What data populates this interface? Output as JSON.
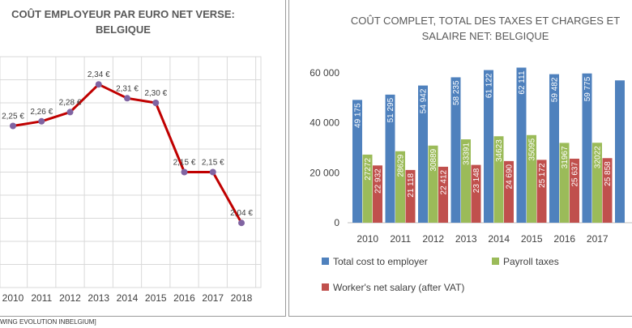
{
  "caption": "WING EVOLUTION INBELGIUM]",
  "colors": {
    "line": "#c00000",
    "marker": "#8064a2",
    "total": "#4f81bd",
    "taxes": "#9bbb59",
    "net": "#c0504d",
    "grid": "#d9d9d9"
  },
  "chart_data": [
    {
      "type": "line",
      "title_lines": [
        "COÛT EMPLOYEUR PAR EURO NET VERSE:",
        "BELGIQUE"
      ],
      "categories": [
        "2010",
        "2011",
        "2012",
        "2013",
        "2014",
        "2015",
        "2016",
        "2017",
        "2018"
      ],
      "values": [
        2.25,
        2.26,
        2.28,
        2.34,
        2.31,
        2.3,
        2.15,
        2.15,
        2.04
      ],
      "data_labels": [
        "2,25 €",
        "2,26 €",
        "2,28 €",
        "2,34 €",
        "2,31 €",
        "2,30 €",
        "2,15 €",
        "2,15 €",
        "2,04 €"
      ],
      "ylim": [
        1.9,
        2.4
      ],
      "grid": true
    },
    {
      "type": "bar",
      "title_lines": [
        "COÛT COMPLET, TOTAL DES TAXES ET CHARGES ET",
        "SALAIRE NET: BELGIQUE"
      ],
      "categories": [
        "2010",
        "2011",
        "2012",
        "2013",
        "2014",
        "2015",
        "2016",
        "2017"
      ],
      "ylim": [
        0,
        70000
      ],
      "yticks": [
        0,
        20000,
        40000,
        60000
      ],
      "ytick_labels": [
        "0",
        "20 000",
        "40 000",
        "60 000"
      ],
      "grid": false,
      "legend_position": "bottom",
      "series": [
        {
          "name": "Total cost to employer",
          "values": [
            49175,
            51295,
            54942,
            58235,
            61122,
            62111,
            59482,
            59775
          ],
          "labels": [
            "49 175",
            "51 295",
            "54 942",
            "58 235",
            "61 122",
            "62 111",
            "59 482",
            "59 775"
          ]
        },
        {
          "name": "Payroll taxes",
          "values": [
            27272,
            28629,
            30889,
            33391,
            34623,
            35095,
            31967,
            32022
          ],
          "labels": [
            "27272",
            "28629",
            "30889",
            "33391",
            "34623",
            "35095",
            "31967",
            "32022"
          ]
        },
        {
          "name": "Worker's net salary (after VAT)",
          "values": [
            22932,
            21118,
            22412,
            23148,
            24690,
            25172,
            25637,
            25858
          ],
          "labels": [
            "22 932",
            "21 118",
            "22 412",
            "23 148",
            "24 690",
            "25 172",
            "25 637",
            "25 858"
          ]
        }
      ],
      "partial_next_total": 57000
    }
  ]
}
